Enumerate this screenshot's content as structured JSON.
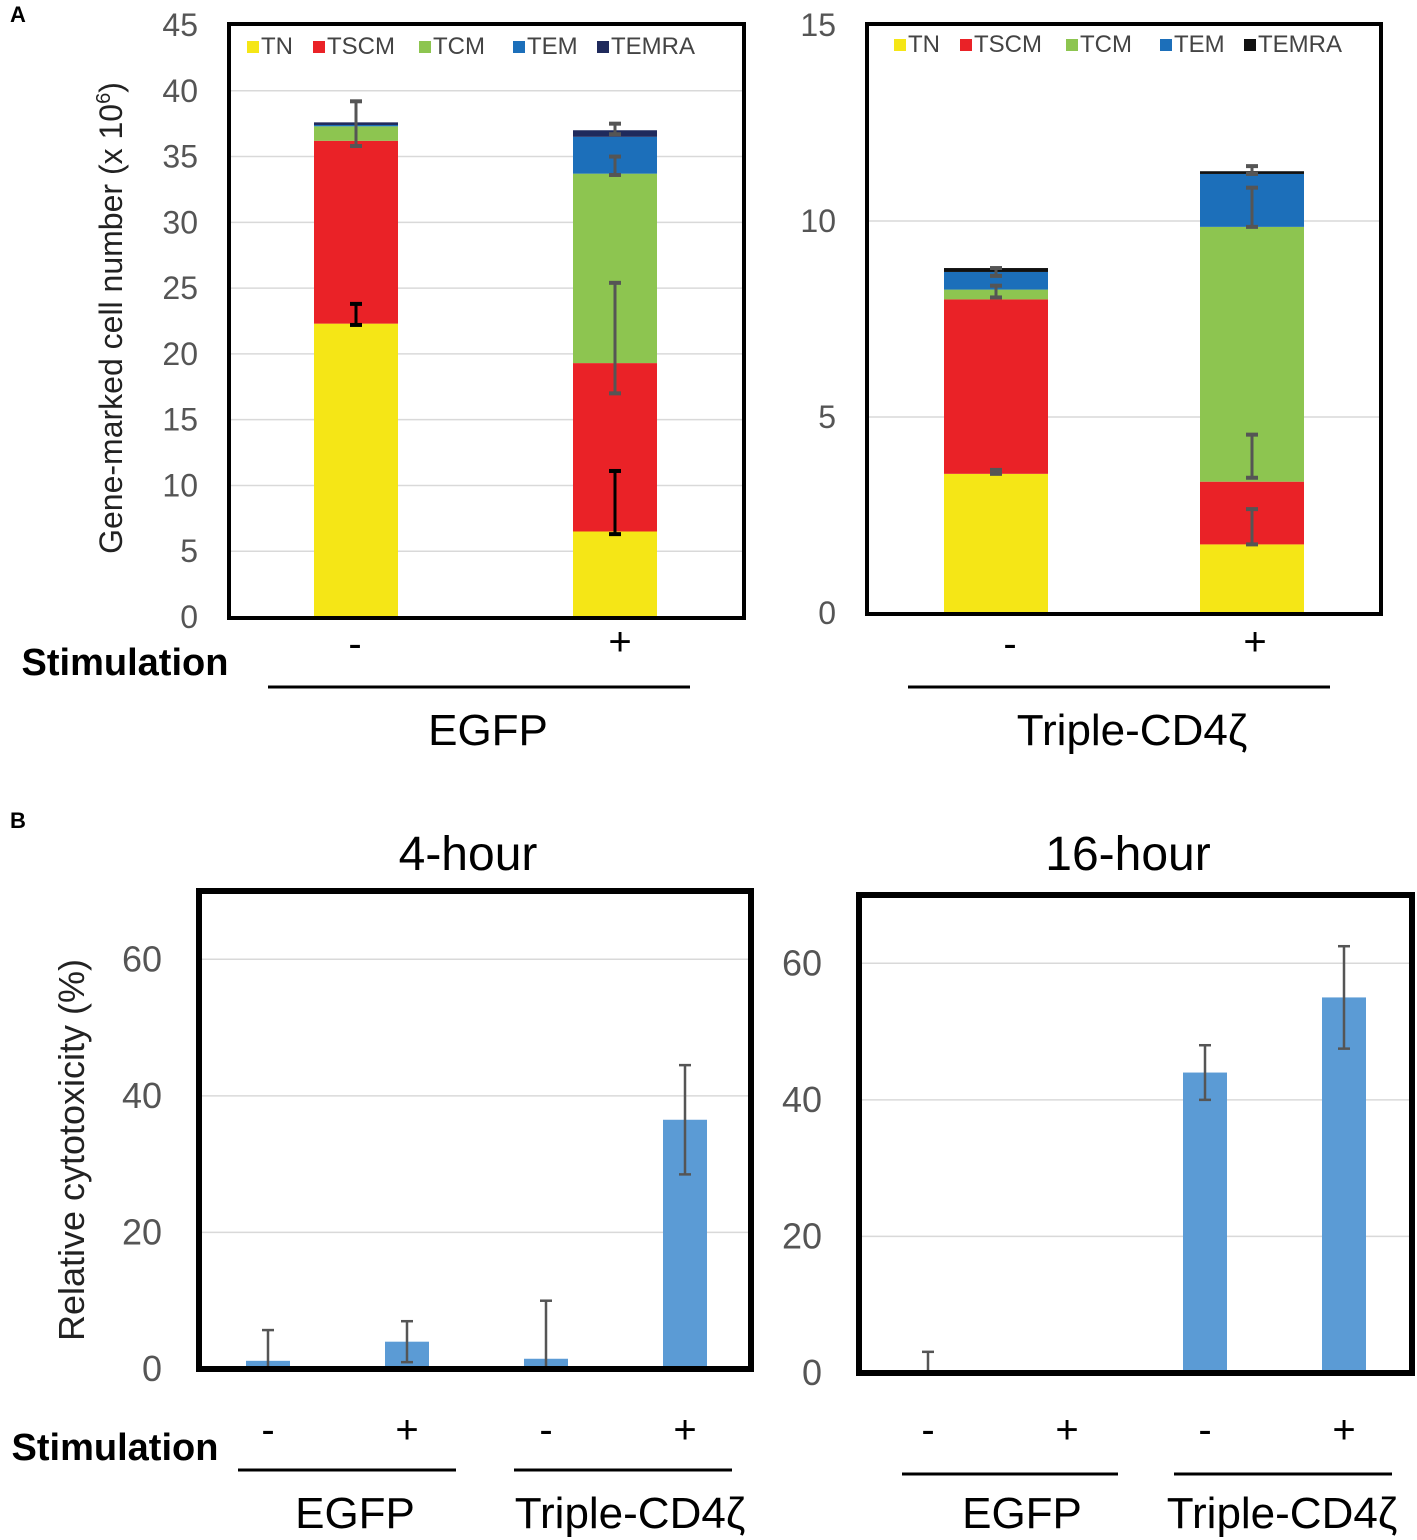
{
  "panel_labels": {
    "a": "A",
    "b": "B"
  },
  "stimulation_label": "Stimulation",
  "colors": {
    "TN": "#f5e616",
    "TSCM": "#ea2227",
    "TCM": "#8dc550",
    "TEM": "#1c6fba",
    "TEMRA_left": "#1f2a5c",
    "TEMRA_right": "#111111",
    "bar_b": "#5b9bd5",
    "error_bar": "#555555",
    "error_bar_dark": "#000000",
    "gridline": "#d9d9d9",
    "frame": "#000000"
  },
  "chart_data": [
    {
      "id": "A-EGFP",
      "type": "bar",
      "stacked": true,
      "ylabel": "Gene-marked cell number (x 10",
      "ylabel_sup": "6",
      "ylabel_close": ")",
      "ylim": [
        0,
        45
      ],
      "yticks": [
        "0",
        "5",
        "10",
        "15",
        "20",
        "25",
        "30",
        "35",
        "40",
        "45"
      ],
      "legend": [
        "TN",
        "TSCM",
        "TCM",
        "TEM",
        "TEMRA"
      ],
      "categories": [
        "-",
        "+"
      ],
      "group_label": "EGFP",
      "series": [
        {
          "name": "TN",
          "values": [
            22.3,
            6.5
          ]
        },
        {
          "name": "TSCM",
          "values": [
            13.9,
            12.8
          ]
        },
        {
          "name": "TCM",
          "values": [
            1.1,
            14.4
          ]
        },
        {
          "name": "TEM",
          "values": [
            0.1,
            2.8
          ]
        },
        {
          "name": "TEMRA",
          "values": [
            0.2,
            0.5
          ]
        }
      ],
      "error_bars": [
        {
          "category": 0,
          "y": 23.0,
          "err": 0.8,
          "dark": true
        },
        {
          "category": 0,
          "y": 37.5,
          "err": 1.7
        },
        {
          "category": 1,
          "y": 8.7,
          "err": 2.4,
          "dark": true
        },
        {
          "category": 1,
          "y": 21.2,
          "err": 4.2
        },
        {
          "category": 1,
          "y": 34.3,
          "err": 0.7
        },
        {
          "category": 1,
          "y": 37.1,
          "err": 0.4
        }
      ]
    },
    {
      "id": "A-Triple",
      "type": "bar",
      "stacked": true,
      "ylim": [
        0,
        15
      ],
      "yticks": [
        "0",
        "5",
        "10",
        "15"
      ],
      "legend": [
        "TN",
        "TSCM",
        "TCM",
        "TEM",
        "TEMRA"
      ],
      "categories": [
        "-",
        "+"
      ],
      "group_label": "Triple-CD4ζ",
      "series": [
        {
          "name": "TN",
          "values": [
            3.55,
            1.75
          ]
        },
        {
          "name": "TSCM",
          "values": [
            4.45,
            1.6
          ]
        },
        {
          "name": "TCM",
          "values": [
            0.25,
            6.5
          ]
        },
        {
          "name": "TEM",
          "values": [
            0.45,
            1.35
          ]
        },
        {
          "name": "TEMRA",
          "values": [
            0.1,
            0.07
          ]
        }
      ],
      "error_bars": [
        {
          "category": 0,
          "y": 3.6,
          "err": 0.05
        },
        {
          "category": 0,
          "y": 8.2,
          "err": 0.15
        },
        {
          "category": 0,
          "y": 8.7,
          "err": 0.1
        },
        {
          "category": 1,
          "y": 2.2,
          "err": 0.45
        },
        {
          "category": 1,
          "y": 4.0,
          "err": 0.55
        },
        {
          "category": 1,
          "y": 10.35,
          "err": 0.5
        },
        {
          "category": 1,
          "y": 11.3,
          "err": 0.1
        }
      ]
    },
    {
      "id": "B-4h",
      "type": "bar",
      "title": "4-hour",
      "ylabel": "Relative cytotoxicity (%)",
      "ylim": [
        0,
        70
      ],
      "yticks": [
        "0",
        "20",
        "40",
        "60"
      ],
      "categories": [
        "-",
        "+",
        "-",
        "+"
      ],
      "groups": [
        "EGFP",
        "Triple-CD4ζ"
      ],
      "values": [
        1.2,
        4.0,
        1.5,
        36.5
      ],
      "errors": [
        4.5,
        3.0,
        8.5,
        8.0
      ]
    },
    {
      "id": "B-16h",
      "type": "bar",
      "title": "16-hour",
      "ylim": [
        0,
        70
      ],
      "yticks": [
        "0",
        "20",
        "40",
        "60"
      ],
      "categories": [
        "-",
        "+",
        "-",
        "+"
      ],
      "groups": [
        "EGFP",
        "Triple-CD4ζ"
      ],
      "values": [
        0.3,
        0.2,
        44.0,
        55.0
      ],
      "errors": [
        2.8,
        0,
        4.0,
        7.5
      ]
    }
  ]
}
